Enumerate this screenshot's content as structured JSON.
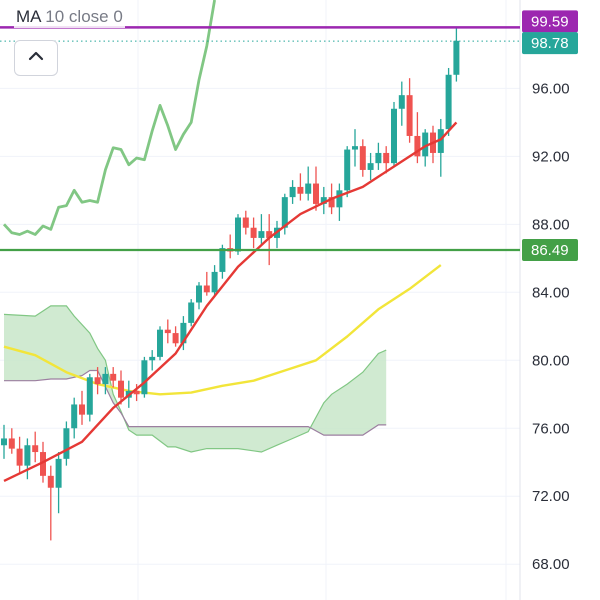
{
  "indicator": {
    "name": "MA",
    "params": "10 close 0"
  },
  "collapse_button": {
    "icon": "chevron-up-icon"
  },
  "price_axis": {
    "ticks": [
      "96.00",
      "92.00",
      "88.00",
      "84.00",
      "80.00",
      "76.00",
      "72.00",
      "68.00"
    ]
  },
  "badges": {
    "high_line": {
      "label": "99.59",
      "color": "#9c27b0"
    },
    "last_price": {
      "label": "98.78",
      "color": "#26a69a"
    },
    "horizontal_line": {
      "label": "86.49",
      "color": "#43a047"
    }
  },
  "colors": {
    "up": "#26a69a",
    "down": "#ef5350",
    "ma_red": "#e53935",
    "ma_yellow": "#f2e53a",
    "lagging_green": "#81c784",
    "cloud_fill": "#c8e6c9",
    "cloud_line": "#9c7fa0"
  },
  "chart_data": {
    "type": "candlestick",
    "y_range": [
      66.6,
      101.2
    ],
    "x_count": 65,
    "candles": [
      [
        0,
        75.0,
        76.2,
        74.2,
        75.4
      ],
      [
        1,
        75.4,
        76.0,
        74.5,
        74.8
      ],
      [
        2,
        74.8,
        75.5,
        73.4,
        73.8
      ],
      [
        3,
        73.8,
        75.4,
        73.0,
        75.0
      ],
      [
        4,
        75.0,
        75.8,
        74.0,
        74.6
      ],
      [
        5,
        74.6,
        75.2,
        72.8,
        73.2
      ],
      [
        6,
        73.2,
        73.8,
        69.4,
        72.5
      ],
      [
        7,
        72.5,
        74.6,
        71.0,
        74.2
      ],
      [
        8,
        74.2,
        76.4,
        73.8,
        76.0
      ],
      [
        9,
        76.0,
        77.8,
        75.4,
        77.4
      ],
      [
        10,
        77.4,
        78.2,
        76.2,
        76.8
      ],
      [
        11,
        76.8,
        79.2,
        76.4,
        79.0
      ],
      [
        12,
        79.0,
        79.6,
        78.0,
        78.6
      ],
      [
        13,
        78.6,
        79.6,
        78.0,
        79.2
      ],
      [
        14,
        79.2,
        79.6,
        78.4,
        78.8
      ],
      [
        15,
        78.8,
        79.4,
        77.4,
        77.8
      ],
      [
        16,
        77.8,
        78.8,
        77.2,
        78.2
      ],
      [
        17,
        78.2,
        78.6,
        77.6,
        78.0
      ],
      [
        18,
        78.0,
        80.2,
        77.8,
        80.0
      ],
      [
        19,
        80.0,
        80.6,
        79.4,
        80.2
      ],
      [
        20,
        80.2,
        82.0,
        80.0,
        81.8
      ],
      [
        21,
        81.8,
        82.4,
        81.0,
        81.6
      ],
      [
        22,
        81.6,
        82.0,
        80.8,
        81.0
      ],
      [
        23,
        81.0,
        82.6,
        80.6,
        82.2
      ],
      [
        24,
        82.2,
        83.6,
        82.0,
        83.4
      ],
      [
        25,
        83.4,
        84.6,
        83.0,
        84.4
      ],
      [
        26,
        84.4,
        85.2,
        83.8,
        84.0
      ],
      [
        27,
        84.0,
        85.6,
        83.8,
        85.2
      ],
      [
        28,
        85.2,
        86.8,
        84.8,
        86.6
      ],
      [
        29,
        86.6,
        87.4,
        86.0,
        86.4
      ],
      [
        30,
        86.4,
        88.6,
        86.2,
        88.4
      ],
      [
        31,
        88.4,
        88.8,
        87.4,
        87.8
      ],
      [
        32,
        87.8,
        88.4,
        86.6,
        87.2
      ],
      [
        33,
        87.2,
        88.6,
        86.8,
        87.6
      ],
      [
        34,
        87.6,
        88.6,
        85.6,
        87.2
      ],
      [
        35,
        87.2,
        88.2,
        86.6,
        87.8
      ],
      [
        36,
        87.8,
        89.8,
        87.4,
        89.6
      ],
      [
        37,
        89.6,
        90.6,
        89.2,
        90.2
      ],
      [
        38,
        90.2,
        91.0,
        89.4,
        89.8
      ],
      [
        39,
        89.8,
        91.4,
        89.4,
        90.4
      ],
      [
        40,
        90.4,
        91.4,
        88.8,
        89.2
      ],
      [
        41,
        89.2,
        90.2,
        88.6,
        89.6
      ],
      [
        42,
        89.6,
        90.4,
        88.6,
        89.0
      ],
      [
        43,
        89.0,
        90.4,
        88.2,
        90.0
      ],
      [
        44,
        90.0,
        92.6,
        89.6,
        92.4
      ],
      [
        45,
        92.4,
        93.6,
        91.4,
        92.6
      ],
      [
        46,
        92.6,
        93.0,
        90.8,
        91.2
      ],
      [
        47,
        91.2,
        92.2,
        90.6,
        91.6
      ],
      [
        48,
        91.6,
        92.8,
        91.2,
        92.2
      ],
      [
        49,
        92.2,
        92.6,
        91.0,
        91.6
      ],
      [
        50,
        91.6,
        95.2,
        91.4,
        94.8
      ],
      [
        51,
        94.8,
        96.4,
        93.8,
        95.6
      ],
      [
        52,
        95.6,
        96.6,
        92.8,
        93.2
      ],
      [
        53,
        93.2,
        94.6,
        91.6,
        92.0
      ],
      [
        54,
        92.0,
        93.6,
        91.4,
        93.4
      ],
      [
        55,
        93.4,
        93.8,
        91.6,
        92.2
      ],
      [
        56,
        92.2,
        94.2,
        90.8,
        93.6
      ],
      [
        57,
        93.6,
        97.2,
        93.2,
        96.8
      ],
      [
        58,
        96.8,
        99.6,
        96.4,
        98.8
      ]
    ],
    "ma10_red": [
      [
        0,
        72.9
      ],
      [
        5,
        74.0
      ],
      [
        10,
        75.2
      ],
      [
        14,
        77.2
      ],
      [
        18,
        78.7
      ],
      [
        22,
        80.4
      ],
      [
        26,
        83.2
      ],
      [
        30,
        85.5
      ],
      [
        34,
        87.2
      ],
      [
        38,
        88.6
      ],
      [
        42,
        89.5
      ],
      [
        46,
        90.2
      ],
      [
        50,
        91.4
      ],
      [
        54,
        92.6
      ],
      [
        56,
        93.0
      ],
      [
        58,
        94.0
      ]
    ],
    "ma_yellow": [
      [
        0,
        80.8
      ],
      [
        4,
        80.3
      ],
      [
        8,
        79.3
      ],
      [
        12,
        78.6
      ],
      [
        16,
        78.2
      ],
      [
        20,
        78.0
      ],
      [
        24,
        78.1
      ],
      [
        28,
        78.5
      ],
      [
        32,
        78.8
      ],
      [
        36,
        79.4
      ],
      [
        40,
        80.0
      ],
      [
        44,
        81.4
      ],
      [
        48,
        83.0
      ],
      [
        52,
        84.2
      ],
      [
        56,
        85.6
      ]
    ],
    "lagging_green": [
      [
        0,
        88.0
      ],
      [
        1,
        87.5
      ],
      [
        2,
        87.4
      ],
      [
        3,
        87.6
      ],
      [
        4,
        87.4
      ],
      [
        5,
        87.9
      ],
      [
        6,
        87.7
      ],
      [
        7,
        89.0
      ],
      [
        8,
        89.1
      ],
      [
        9,
        90.0
      ],
      [
        10,
        89.3
      ],
      [
        11,
        89.4
      ],
      [
        12,
        89.3
      ],
      [
        13,
        91.2
      ],
      [
        14,
        92.5
      ],
      [
        15,
        92.4
      ],
      [
        16,
        91.5
      ],
      [
        17,
        91.9
      ],
      [
        18,
        91.8
      ],
      [
        19,
        93.5
      ],
      [
        20,
        95.0
      ],
      [
        21,
        93.8
      ],
      [
        22,
        92.4
      ],
      [
        23,
        93.3
      ],
      [
        24,
        94.0
      ],
      [
        25,
        96.5
      ],
      [
        26,
        98.5
      ],
      [
        27,
        101.2
      ]
    ],
    "cloud_top": [
      [
        0,
        82.7
      ],
      [
        4,
        82.6
      ],
      [
        6,
        83.2
      ],
      [
        8,
        83.2
      ],
      [
        9,
        82.6
      ],
      [
        11,
        81.6
      ],
      [
        12,
        80.7
      ],
      [
        13,
        80.0
      ],
      [
        14,
        78.0
      ],
      [
        15,
        77.0
      ],
      [
        16,
        75.9
      ],
      [
        17,
        75.6
      ],
      [
        19,
        75.6
      ],
      [
        21,
        74.9
      ],
      [
        22,
        74.9
      ],
      [
        24,
        74.6
      ],
      [
        26,
        74.8
      ],
      [
        30,
        74.8
      ],
      [
        33,
        74.6
      ],
      [
        35,
        75.0
      ],
      [
        37,
        75.4
      ],
      [
        39,
        75.8
      ],
      [
        41,
        77.5
      ],
      [
        42,
        78.0
      ],
      [
        44,
        78.6
      ],
      [
        46,
        79.3
      ],
      [
        48,
        80.4
      ],
      [
        49,
        80.6
      ]
    ],
    "cloud_bottom": [
      [
        0,
        78.8
      ],
      [
        4,
        78.8
      ],
      [
        6,
        78.9
      ],
      [
        8,
        78.9
      ],
      [
        10,
        79.1
      ],
      [
        11,
        79.4
      ],
      [
        12,
        79.4
      ],
      [
        14,
        77.5
      ],
      [
        15,
        76.9
      ],
      [
        16,
        76.1
      ],
      [
        18,
        76.1
      ],
      [
        26,
        76.1
      ],
      [
        30,
        76.1
      ],
      [
        35,
        76.1
      ],
      [
        39,
        76.1
      ],
      [
        41,
        75.6
      ],
      [
        42,
        75.6
      ],
      [
        44,
        75.6
      ],
      [
        46,
        75.6
      ],
      [
        48,
        76.2
      ],
      [
        49,
        76.2
      ]
    ]
  }
}
